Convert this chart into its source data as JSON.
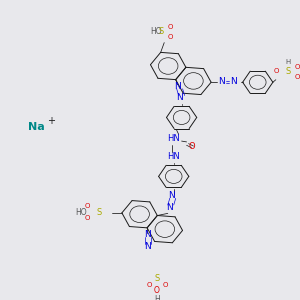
{
  "bg_color": "#e8e8ec",
  "bond_color": "#1a1a1a",
  "nitrogen_color": "#0000dd",
  "oxygen_color": "#dd0000",
  "sulfur_color": "#aaaa00",
  "carbon_color": "#555555",
  "na_color": "#008888",
  "fig_width": 3.0,
  "fig_height": 3.0,
  "dpi": 100,
  "xlim": [
    0,
    300
  ],
  "ylim": [
    0,
    300
  ]
}
